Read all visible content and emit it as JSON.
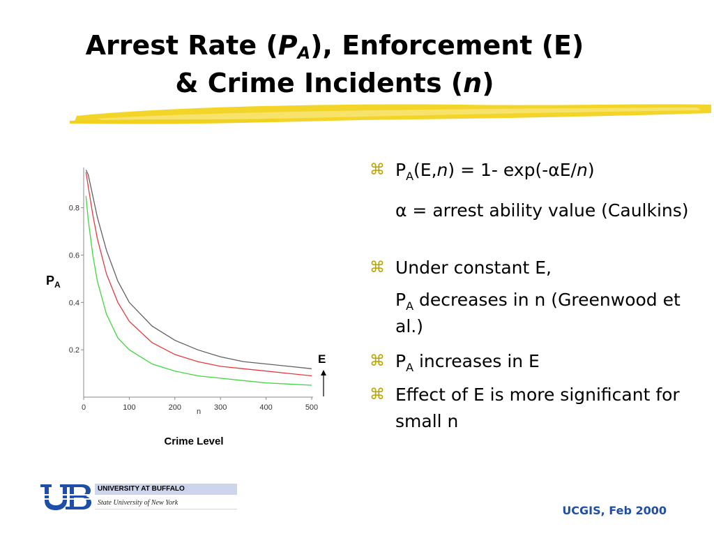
{
  "title": {
    "l1_before": "Arrest Rate (",
    "l1_p": "P",
    "l1_sub": "A",
    "l1_after": "), Enforcement (E)",
    "l2_before": "& Crime Incidents (",
    "l2_n": "n",
    "l2_after": ")"
  },
  "chart_data": {
    "type": "line",
    "title": "",
    "xlabel": "n",
    "ylabel": "PA",
    "y_label_main": "P",
    "y_label_sub": "A",
    "caption": "Crime Level",
    "arrow_label": "E",
    "xlim": [
      0,
      500
    ],
    "ylim": [
      0,
      0.97
    ],
    "x_ticks": [
      "0",
      "100",
      "200",
      "300",
      "400",
      "500"
    ],
    "y_ticks": [
      "0.2",
      "0.4",
      "0.6",
      "0.8"
    ],
    "x": [
      5,
      10,
      20,
      30,
      50,
      75,
      100,
      150,
      200,
      250,
      300,
      350,
      400,
      450,
      500
    ],
    "series": [
      {
        "color": "#606060",
        "values": [
          0.96,
          0.94,
          0.85,
          0.76,
          0.62,
          0.49,
          0.4,
          0.3,
          0.24,
          0.2,
          0.17,
          0.15,
          0.14,
          0.13,
          0.12
        ]
      },
      {
        "color": "#e8383d",
        "values": [
          0.95,
          0.89,
          0.77,
          0.67,
          0.52,
          0.4,
          0.32,
          0.23,
          0.18,
          0.15,
          0.13,
          0.12,
          0.11,
          0.1,
          0.09
        ]
      },
      {
        "color": "#3fd63f",
        "values": [
          0.85,
          0.75,
          0.6,
          0.49,
          0.35,
          0.25,
          0.2,
          0.14,
          0.11,
          0.09,
          0.08,
          0.07,
          0.06,
          0.055,
          0.05
        ]
      }
    ]
  },
  "bullets": {
    "icon": "⌘",
    "icon_name": "command-key-icon",
    "b1": {
      "p": "P",
      "sub": "A",
      "open": "(E,",
      "n": "n",
      "rest": ") = 1- exp(-",
      "alpha": "α",
      "e": "E/",
      "n2": "n",
      "close": ")"
    },
    "b1_note": {
      "alpha": "α",
      "text": " = arrest ability value (Caulkins)"
    },
    "b2": "Under constant E,",
    "b2_note": {
      "p": "P",
      "sub": "A",
      "text": " decreases in n (Greenwood et al.)"
    },
    "b3": {
      "p": "P",
      "sub": "A",
      "text": " increases in E"
    },
    "b4": "Effect of E is more significant for small n"
  },
  "logo": {
    "line1": "UNIVERSITY AT BUFFALO",
    "line2": "State University of New York",
    "accent": "#1f4ea8"
  },
  "footer": "UCGIS, Feb 2000",
  "colors": {
    "highlight": "#f0d020",
    "bullet": "#b8a100",
    "footer": "#1f4ea8"
  }
}
